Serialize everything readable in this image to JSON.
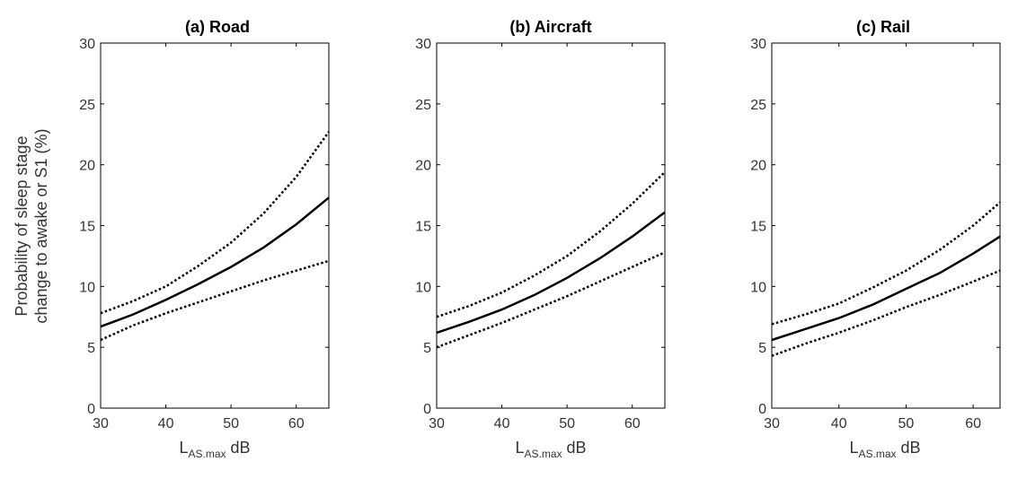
{
  "chart_data": [
    {
      "type": "line",
      "title": "(a) Road",
      "xlabel_main": "L",
      "xlabel_sub": "AS.max",
      "xlabel_unit": " dB",
      "ylabel_line1": "Probability of sleep stage",
      "ylabel_line2": "change to awake or S1 (%)",
      "xlim": [
        30,
        65
      ],
      "ylim": [
        0,
        30
      ],
      "xticks": [
        "30",
        "40",
        "50",
        "60"
      ],
      "yticks": [
        "0",
        "5",
        "10",
        "15",
        "20",
        "25",
        "30"
      ],
      "x": [
        30,
        35,
        40,
        45,
        50,
        55,
        60,
        65
      ],
      "series": [
        {
          "role": "estimate",
          "values": [
            6.7,
            7.7,
            8.9,
            10.2,
            11.6,
            13.2,
            15.1,
            17.3
          ]
        },
        {
          "role": "upper",
          "values": [
            7.8,
            8.8,
            10.0,
            11.7,
            13.6,
            16.0,
            19.0,
            22.7
          ]
        },
        {
          "role": "lower",
          "values": [
            5.6,
            6.8,
            7.8,
            8.7,
            9.6,
            10.5,
            11.3,
            12.1
          ]
        }
      ]
    },
    {
      "type": "line",
      "title": "(b) Aircraft",
      "xlabel_main": "L",
      "xlabel_sub": "AS.max",
      "xlabel_unit": " dB",
      "xlim": [
        30,
        65
      ],
      "ylim": [
        0,
        30
      ],
      "xticks": [
        "30",
        "40",
        "50",
        "60"
      ],
      "yticks": [
        "0",
        "5",
        "10",
        "15",
        "20",
        "25",
        "30"
      ],
      "x": [
        30,
        35,
        40,
        45,
        50,
        55,
        60,
        65
      ],
      "series": [
        {
          "role": "estimate",
          "values": [
            6.2,
            7.1,
            8.1,
            9.3,
            10.7,
            12.3,
            14.1,
            16.1
          ]
        },
        {
          "role": "upper",
          "values": [
            7.5,
            8.4,
            9.5,
            10.9,
            12.5,
            14.5,
            16.8,
            19.4
          ]
        },
        {
          "role": "lower",
          "values": [
            5.0,
            6.0,
            7.0,
            8.1,
            9.2,
            10.4,
            11.6,
            12.8
          ]
        }
      ]
    },
    {
      "type": "line",
      "title": "(c) Rail",
      "xlabel_main": "L",
      "xlabel_sub": "AS.max",
      "xlabel_unit": " dB",
      "xlim": [
        30,
        64
      ],
      "ylim": [
        0,
        30
      ],
      "xticks": [
        "30",
        "40",
        "50",
        "60"
      ],
      "yticks": [
        "0",
        "5",
        "10",
        "15",
        "20",
        "25",
        "30"
      ],
      "x": [
        30,
        35,
        40,
        45,
        50,
        55,
        60,
        64
      ],
      "series": [
        {
          "role": "estimate",
          "values": [
            5.6,
            6.5,
            7.4,
            8.5,
            9.8,
            11.1,
            12.7,
            14.1
          ]
        },
        {
          "role": "upper",
          "values": [
            6.9,
            7.7,
            8.6,
            9.9,
            11.3,
            13.0,
            15.0,
            16.9
          ]
        },
        {
          "role": "lower",
          "values": [
            4.3,
            5.3,
            6.2,
            7.2,
            8.3,
            9.3,
            10.4,
            11.3
          ]
        }
      ]
    }
  ]
}
